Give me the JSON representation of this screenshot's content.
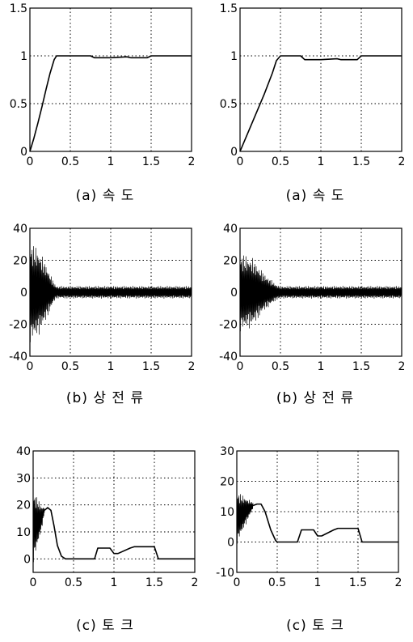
{
  "chart_data": [
    {
      "id": "speed-left",
      "type": "line",
      "caption": "(a) 속   도",
      "xticks": [
        "0",
        "0.5",
        "1",
        "1.5",
        "2"
      ],
      "yticks": [
        "0",
        "0.5",
        "1",
        "1.5"
      ],
      "xlim": [
        0,
        2
      ],
      "ylim": [
        0,
        1.5
      ],
      "grid": true,
      "series": [
        {
          "x": [
            0,
            0.05,
            0.1,
            0.15,
            0.2,
            0.25,
            0.3,
            0.33,
            0.36,
            0.5,
            0.75,
            0.8,
            1.0,
            1.2,
            1.25,
            1.45,
            1.5,
            1.55,
            2.0
          ],
          "y": [
            0,
            0.14,
            0.3,
            0.47,
            0.65,
            0.82,
            0.96,
            1.0,
            1.0,
            1.0,
            1.0,
            0.98,
            0.98,
            0.99,
            0.98,
            0.98,
            1.0,
            1.0,
            1.0
          ]
        }
      ]
    },
    {
      "id": "speed-right",
      "type": "line",
      "caption": "(a) 속   도",
      "xticks": [
        "0",
        "0.5",
        "1",
        "1.5",
        "2"
      ],
      "yticks": [
        "0",
        "0.5",
        "1",
        "1.5"
      ],
      "xlim": [
        0,
        2
      ],
      "ylim": [
        0,
        1.5
      ],
      "grid": true,
      "series": [
        {
          "x": [
            0,
            0.05,
            0.1,
            0.2,
            0.3,
            0.4,
            0.45,
            0.5,
            0.75,
            0.8,
            1.0,
            1.2,
            1.25,
            1.45,
            1.5,
            1.55,
            2.0
          ],
          "y": [
            0,
            0.1,
            0.2,
            0.4,
            0.6,
            0.82,
            0.95,
            1.0,
            1.0,
            0.96,
            0.96,
            0.97,
            0.96,
            0.96,
            1.0,
            1.0,
            1.0
          ]
        }
      ]
    },
    {
      "id": "current-left",
      "type": "line",
      "caption": "(b) 상 전 류",
      "xticks": [
        "0",
        "0.5",
        "1",
        "1.5",
        "2"
      ],
      "yticks": [
        "-40",
        "-20",
        "0",
        "20",
        "40"
      ],
      "xlim": [
        0,
        2
      ],
      "ylim": [
        -40,
        40
      ],
      "grid": true,
      "envelope": [
        {
          "t": 0,
          "amp": 32
        },
        {
          "t": 0.1,
          "amp": 28
        },
        {
          "t": 0.2,
          "amp": 18
        },
        {
          "t": 0.3,
          "amp": 6
        },
        {
          "t": 0.33,
          "amp": 4
        },
        {
          "t": 2.0,
          "amp": 4
        }
      ]
    },
    {
      "id": "current-right",
      "type": "line",
      "caption": "(b) 상 전 류",
      "xticks": [
        "0",
        "0.5",
        "1",
        "1.5",
        "2"
      ],
      "yticks": [
        "-40",
        "-20",
        "0",
        "20",
        "40"
      ],
      "xlim": [
        0,
        2
      ],
      "ylim": [
        -40,
        40
      ],
      "grid": true,
      "envelope": [
        {
          "t": 0,
          "amp": 25
        },
        {
          "t": 0.15,
          "amp": 22
        },
        {
          "t": 0.3,
          "amp": 12
        },
        {
          "t": 0.45,
          "amp": 5
        },
        {
          "t": 0.5,
          "amp": 4
        },
        {
          "t": 2.0,
          "amp": 4
        }
      ]
    },
    {
      "id": "torque-left",
      "type": "line",
      "caption": "(c) 토    크",
      "xticks": [
        "0",
        "0.5",
        "1",
        "1.5",
        "2"
      ],
      "yticks": [
        "0",
        "10",
        "20",
        "30",
        "40"
      ],
      "xlim": [
        0,
        2
      ],
      "ylim": [
        -5,
        40
      ],
      "grid": true,
      "envelope": [
        {
          "t": 0,
          "amp": 14,
          "center": 12
        },
        {
          "t": 0.1,
          "amp": 5,
          "center": 15
        },
        {
          "t": 0.14,
          "amp": 1,
          "center": 18
        }
      ],
      "series": [
        {
          "x": [
            0.14,
            0.18,
            0.22,
            0.26,
            0.3,
            0.35,
            0.4,
            0.5,
            0.76,
            0.8,
            0.95,
            1.0,
            1.05,
            1.2,
            1.25,
            1.45,
            1.5,
            1.55,
            2.0
          ],
          "y": [
            18,
            19,
            18,
            12,
            5,
            1,
            0,
            0,
            0,
            4,
            4,
            2,
            2,
            4,
            4.5,
            4.5,
            4.5,
            0,
            0
          ]
        }
      ]
    },
    {
      "id": "torque-right",
      "type": "line",
      "caption": "(c) 토  크",
      "xticks": [
        "0",
        "0.5",
        "1",
        "1.5",
        "2"
      ],
      "yticks": [
        "-10",
        "0",
        "10",
        "20",
        "30"
      ],
      "xlim": [
        0,
        2
      ],
      "ylim": [
        -10,
        30
      ],
      "grid": true,
      "envelope": [
        {
          "t": 0,
          "amp": 9,
          "center": 8
        },
        {
          "t": 0.15,
          "amp": 3,
          "center": 11
        },
        {
          "t": 0.2,
          "amp": 1,
          "center": 12
        }
      ],
      "series": [
        {
          "x": [
            0.2,
            0.25,
            0.3,
            0.35,
            0.42,
            0.48,
            0.5,
            0.75,
            0.8,
            0.95,
            1.0,
            1.05,
            1.2,
            1.25,
            1.45,
            1.5,
            1.55,
            2.0
          ],
          "y": [
            12,
            12.5,
            12.5,
            10,
            4,
            0.5,
            0,
            0,
            4,
            4,
            2,
            2,
            4,
            4.5,
            4.5,
            4.5,
            0,
            0
          ]
        }
      ]
    }
  ]
}
